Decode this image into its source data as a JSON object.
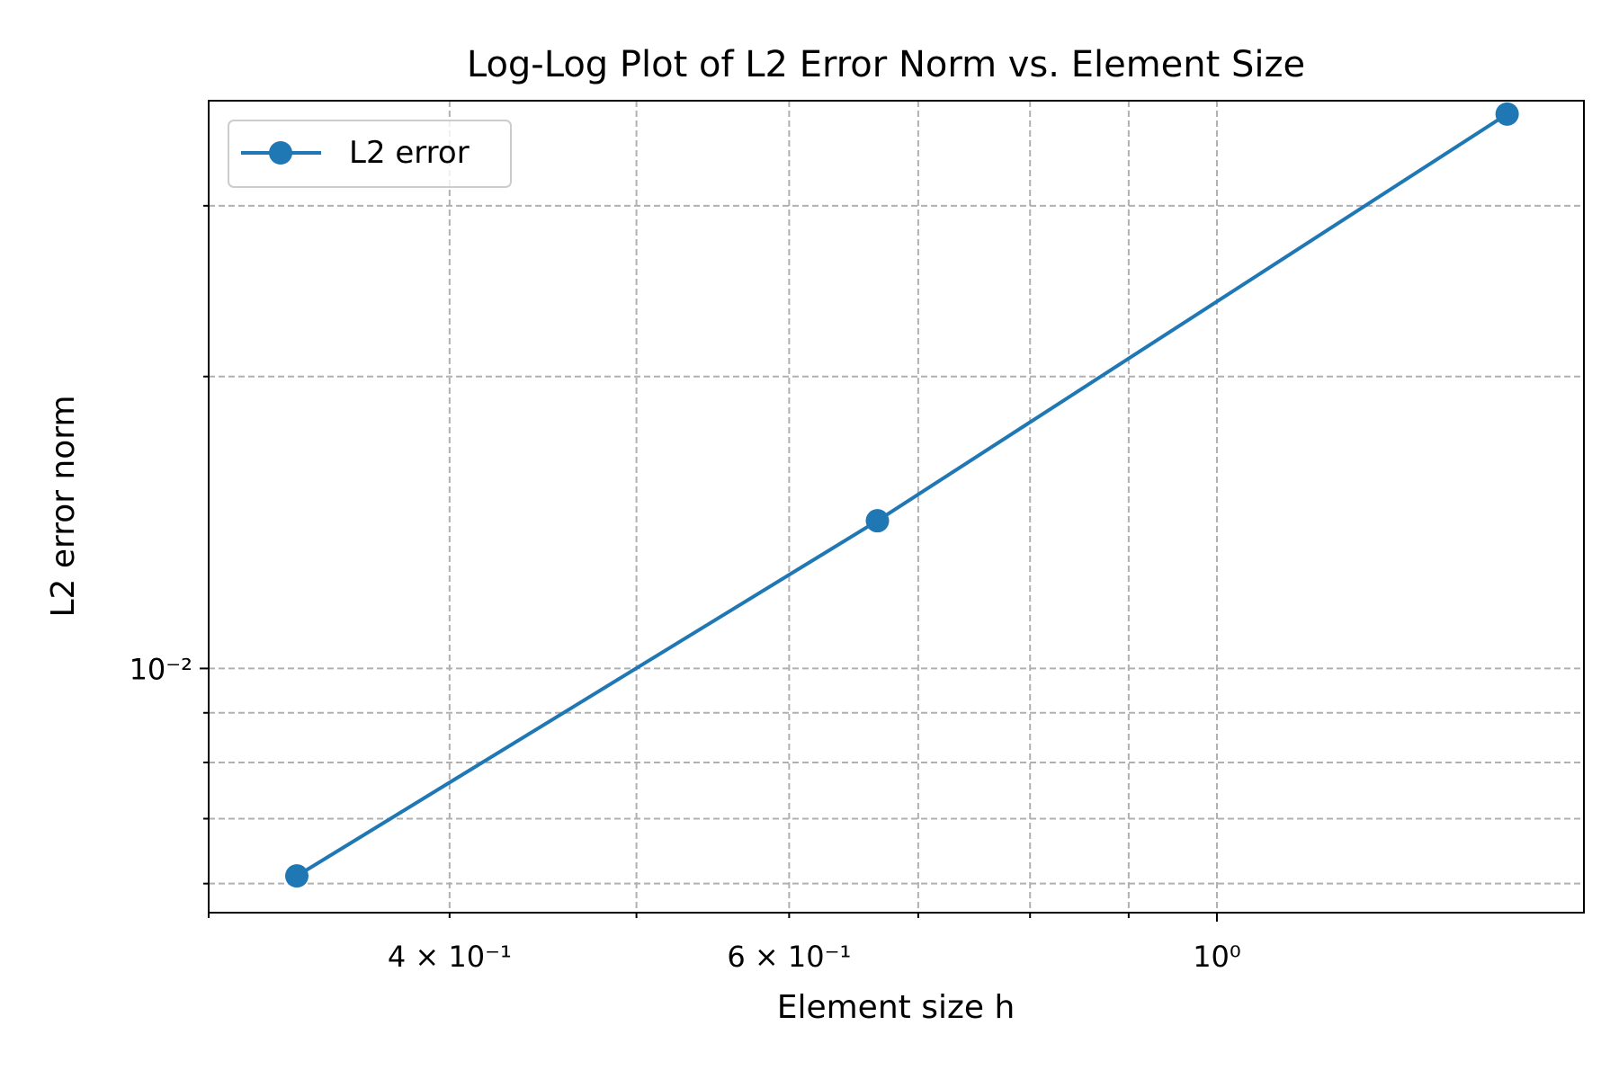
{
  "chart_data": {
    "type": "line",
    "title": "Log-Log Plot of L2 Error Norm vs. Element Size",
    "xlabel": "Element size h",
    "ylabel": "L2 error norm",
    "xscale": "log",
    "yscale": "log",
    "xlim": [
      0.3,
      1.55
    ],
    "ylim": [
      0.0056,
      0.0385
    ],
    "grid": true,
    "grid_style": "dashed",
    "legend_position": "top-left",
    "x_ticks": [
      {
        "value": 0.4,
        "label": "4 × 10⁻¹"
      },
      {
        "value": 0.6,
        "label": "6 × 10⁻¹"
      },
      {
        "value": 1.0,
        "label": "10⁰"
      }
    ],
    "y_ticks": [
      {
        "value": 0.01,
        "label": "10⁻²"
      }
    ],
    "series": [
      {
        "name": "L2 error",
        "color": "#1f77b4",
        "marker": "circle",
        "x": [
          0.3333,
          0.6667,
          1.4142
        ],
        "y": [
          0.00611,
          0.0142,
          0.0373
        ]
      }
    ]
  }
}
